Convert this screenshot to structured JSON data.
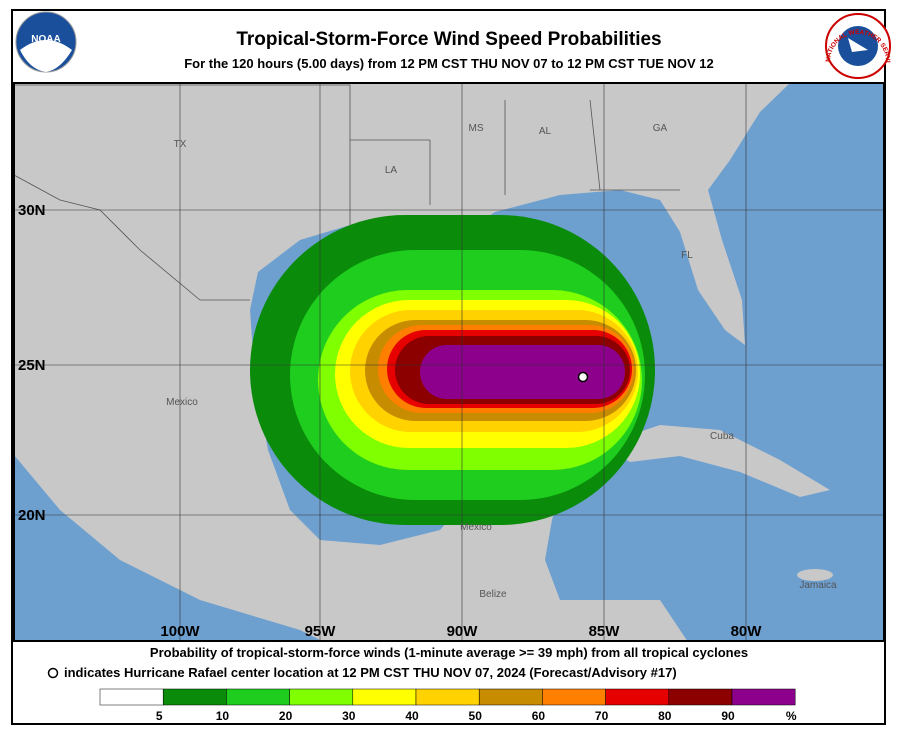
{
  "header": {
    "title": "Tropical-Storm-Force Wind Speed Probabilities",
    "subtitle": "For the 120 hours (5.00 days) from 12 PM CST THU NOV 07 to 12 PM CST TUE NOV 12",
    "left_logo": "NOAA",
    "right_logo": "NATIONAL WEATHER SERVICE"
  },
  "map": {
    "place_labels": [
      "TX",
      "MS",
      "AL",
      "GA",
      "LA",
      "FL",
      "Mexico",
      "Cuba",
      "Mexico",
      "Belize",
      "Jamaica"
    ],
    "lat_labels": [
      "30N",
      "25N",
      "20N"
    ],
    "lon_labels": [
      "100W",
      "95W",
      "90W",
      "85W",
      "80W"
    ]
  },
  "footer": {
    "line1": "Probability of tropical-storm-force winds (1-minute average >= 39 mph) from all tropical cyclones",
    "line2": "indicates Hurricane Rafael center location at 12 PM CST THU NOV 07, 2024 (Forecast/Advisory #17)"
  },
  "legend": {
    "labels": [
      "5",
      "10",
      "20",
      "30",
      "40",
      "50",
      "60",
      "70",
      "80",
      "90",
      "%"
    ],
    "colors": [
      "#ffffff",
      "#0a8c0a",
      "#1ecd1e",
      "#80ff00",
      "#ffff00",
      "#ffd200",
      "#c88c00",
      "#ff7f00",
      "#e60000",
      "#8c0000",
      "#8c008c"
    ]
  }
}
